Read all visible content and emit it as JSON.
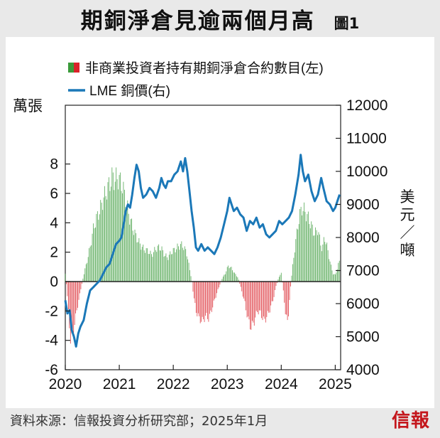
{
  "header": {
    "title": "期銅淨倉見逾兩個月高",
    "figure_label": "圖1"
  },
  "footer": {
    "source": "資料來源：信報投資分析研究部；2025年1月",
    "logo_text": "信報"
  },
  "chart_data": {
    "type": "bar+line",
    "title": "期銅淨倉見逾兩個月高",
    "left_axis": {
      "label": "萬張",
      "ylim": [
        -6,
        12
      ],
      "ticks": [
        -6,
        -4,
        -2,
        0,
        2,
        4,
        6,
        8
      ]
    },
    "right_axis": {
      "label": "美元／噸",
      "ylim": [
        4000,
        12000
      ],
      "ticks": [
        4000,
        5000,
        6000,
        7000,
        8000,
        9000,
        10000,
        11000,
        12000
      ]
    },
    "x_axis": {
      "ticks": [
        "2020",
        "2021",
        "2022",
        "2023",
        "2024",
        "2025"
      ],
      "range": [
        2020.0,
        2025.1
      ]
    },
    "legend": {
      "placement": "top-left",
      "entries": [
        {
          "label": "非商業投資者持有期銅淨倉合約數目(左)",
          "type": "bar"
        },
        {
          "label": "LME 銅價(右)",
          "type": "line"
        }
      ]
    },
    "colors": {
      "positive": "#3a9a3a",
      "negative": "#d9222a",
      "line": "#1b78b8",
      "positive_fill": "#8fcf86",
      "negative_fill": "#ef8a8e"
    },
    "series": [
      {
        "name": "非商業投資者持有期銅淨倉合約數目(左)",
        "axis": "left",
        "unit": "萬張",
        "points": [
          [
            2020.0,
            0.6
          ],
          [
            2020.03,
            -0.6
          ],
          [
            2020.06,
            -2.5
          ],
          [
            2020.1,
            -4.5
          ],
          [
            2020.14,
            -3.8
          ],
          [
            2020.18,
            -3.0
          ],
          [
            2020.22,
            -2.0
          ],
          [
            2020.26,
            -1.2
          ],
          [
            2020.3,
            -0.3
          ],
          [
            2020.34,
            0.5
          ],
          [
            2020.4,
            1.5
          ],
          [
            2020.46,
            2.6
          ],
          [
            2020.52,
            4.0
          ],
          [
            2020.58,
            4.8
          ],
          [
            2020.64,
            5.4
          ],
          [
            2020.7,
            6.2
          ],
          [
            2020.76,
            6.8
          ],
          [
            2020.82,
            7.4
          ],
          [
            2020.88,
            8.0
          ],
          [
            2020.92,
            7.6
          ],
          [
            2020.96,
            7.9
          ],
          [
            2021.0,
            7.7
          ],
          [
            2021.06,
            7.2
          ],
          [
            2021.12,
            6.2
          ],
          [
            2021.18,
            5.0
          ],
          [
            2021.24,
            4.2
          ],
          [
            2021.3,
            3.5
          ],
          [
            2021.36,
            3.0
          ],
          [
            2021.42,
            2.6
          ],
          [
            2021.48,
            2.4
          ],
          [
            2021.54,
            2.3
          ],
          [
            2021.6,
            2.0
          ],
          [
            2021.66,
            2.4
          ],
          [
            2021.72,
            2.6
          ],
          [
            2021.78,
            2.5
          ],
          [
            2021.84,
            2.0
          ],
          [
            2021.9,
            1.8
          ],
          [
            2021.96,
            2.2
          ],
          [
            2022.02,
            2.4
          ],
          [
            2022.08,
            2.6
          ],
          [
            2022.14,
            2.8
          ],
          [
            2022.2,
            2.6
          ],
          [
            2022.26,
            2.0
          ],
          [
            2022.3,
            1.0
          ],
          [
            2022.34,
            0.2
          ],
          [
            2022.38,
            -1.2
          ],
          [
            2022.42,
            -2.2
          ],
          [
            2022.48,
            -2.8
          ],
          [
            2022.54,
            -3.0
          ],
          [
            2022.6,
            -2.6
          ],
          [
            2022.66,
            -2.8
          ],
          [
            2022.72,
            -2.0
          ],
          [
            2022.78,
            -1.2
          ],
          [
            2022.84,
            -0.5
          ],
          [
            2022.9,
            0.2
          ],
          [
            2022.96,
            0.6
          ],
          [
            2023.02,
            1.2
          ],
          [
            2023.08,
            1.0
          ],
          [
            2023.14,
            0.6
          ],
          [
            2023.2,
            0.3
          ],
          [
            2023.26,
            -0.6
          ],
          [
            2023.32,
            -1.5
          ],
          [
            2023.38,
            -2.8
          ],
          [
            2023.44,
            -3.5
          ],
          [
            2023.5,
            -3.0
          ],
          [
            2023.56,
            -2.2
          ],
          [
            2023.62,
            -2.4
          ],
          [
            2023.68,
            -3.0
          ],
          [
            2023.74,
            -2.6
          ],
          [
            2023.8,
            -2.0
          ],
          [
            2023.86,
            -1.2
          ],
          [
            2023.9,
            -0.4
          ],
          [
            2023.96,
            0.4
          ],
          [
            2024.0,
            0.6
          ],
          [
            2024.04,
            -0.8
          ],
          [
            2024.08,
            -2.4
          ],
          [
            2024.12,
            -3.2
          ],
          [
            2024.16,
            -1.0
          ],
          [
            2024.2,
            0.8
          ],
          [
            2024.26,
            2.8
          ],
          [
            2024.32,
            4.6
          ],
          [
            2024.38,
            5.6
          ],
          [
            2024.44,
            5.3
          ],
          [
            2024.5,
            4.8
          ],
          [
            2024.56,
            4.2
          ],
          [
            2024.62,
            3.6
          ],
          [
            2024.68,
            4.0
          ],
          [
            2024.72,
            3.0
          ],
          [
            2024.76,
            2.4
          ],
          [
            2024.8,
            3.4
          ],
          [
            2024.84,
            2.8
          ],
          [
            2024.88,
            2.0
          ],
          [
            2024.92,
            1.2
          ],
          [
            2024.96,
            0.6
          ],
          [
            2025.0,
            0.5
          ],
          [
            2025.04,
            1.0
          ],
          [
            2025.07,
            1.5
          ]
        ]
      },
      {
        "name": "LME 銅價(右)",
        "axis": "right",
        "unit": "美元／噸",
        "points": [
          [
            2020.0,
            6100
          ],
          [
            2020.04,
            5700
          ],
          [
            2020.08,
            5800
          ],
          [
            2020.12,
            5200
          ],
          [
            2020.16,
            5000
          ],
          [
            2020.2,
            4700
          ],
          [
            2020.24,
            5100
          ],
          [
            2020.28,
            5300
          ],
          [
            2020.34,
            5500
          ],
          [
            2020.4,
            6000
          ],
          [
            2020.46,
            6400
          ],
          [
            2020.52,
            6500
          ],
          [
            2020.58,
            6600
          ],
          [
            2020.64,
            6700
          ],
          [
            2020.7,
            6900
          ],
          [
            2020.76,
            7100
          ],
          [
            2020.82,
            7200
          ],
          [
            2020.88,
            7500
          ],
          [
            2020.94,
            7800
          ],
          [
            2021.0,
            7900
          ],
          [
            2021.04,
            8000
          ],
          [
            2021.08,
            8400
          ],
          [
            2021.12,
            8800
          ],
          [
            2021.16,
            9000
          ],
          [
            2021.2,
            8900
          ],
          [
            2021.24,
            9300
          ],
          [
            2021.28,
            9800
          ],
          [
            2021.32,
            10200
          ],
          [
            2021.36,
            10000
          ],
          [
            2021.4,
            9500
          ],
          [
            2021.44,
            9200
          ],
          [
            2021.5,
            9300
          ],
          [
            2021.56,
            9500
          ],
          [
            2021.62,
            9400
          ],
          [
            2021.68,
            9200
          ],
          [
            2021.74,
            9500
          ],
          [
            2021.78,
            9800
          ],
          [
            2021.82,
            9600
          ],
          [
            2021.86,
            9500
          ],
          [
            2021.9,
            9700
          ],
          [
            2021.96,
            9700
          ],
          [
            2022.02,
            9900
          ],
          [
            2022.08,
            10000
          ],
          [
            2022.14,
            10300
          ],
          [
            2022.18,
            10000
          ],
          [
            2022.22,
            10400
          ],
          [
            2022.26,
            10000
          ],
          [
            2022.3,
            9400
          ],
          [
            2022.34,
            8800
          ],
          [
            2022.38,
            8300
          ],
          [
            2022.42,
            7700
          ],
          [
            2022.46,
            7600
          ],
          [
            2022.52,
            7800
          ],
          [
            2022.58,
            7600
          ],
          [
            2022.64,
            7700
          ],
          [
            2022.7,
            7600
          ],
          [
            2022.76,
            7500
          ],
          [
            2022.82,
            7700
          ],
          [
            2022.88,
            8000
          ],
          [
            2022.94,
            8400
          ],
          [
            2023.0,
            8800
          ],
          [
            2023.04,
            9200
          ],
          [
            2023.08,
            9000
          ],
          [
            2023.12,
            8800
          ],
          [
            2023.18,
            8900
          ],
          [
            2023.24,
            8700
          ],
          [
            2023.3,
            8600
          ],
          [
            2023.36,
            8200
          ],
          [
            2023.42,
            8500
          ],
          [
            2023.48,
            8400
          ],
          [
            2023.54,
            8600
          ],
          [
            2023.6,
            8300
          ],
          [
            2023.66,
            8400
          ],
          [
            2023.72,
            8100
          ],
          [
            2023.78,
            8000
          ],
          [
            2023.84,
            8100
          ],
          [
            2023.9,
            8200
          ],
          [
            2023.96,
            8500
          ],
          [
            2024.02,
            8400
          ],
          [
            2024.08,
            8500
          ],
          [
            2024.14,
            8600
          ],
          [
            2024.2,
            8800
          ],
          [
            2024.26,
            9300
          ],
          [
            2024.32,
            9900
          ],
          [
            2024.36,
            10500
          ],
          [
            2024.4,
            10000
          ],
          [
            2024.44,
            9700
          ],
          [
            2024.5,
            9900
          ],
          [
            2024.56,
            9400
          ],
          [
            2024.62,
            9100
          ],
          [
            2024.68,
            9300
          ],
          [
            2024.74,
            9800
          ],
          [
            2024.78,
            9500
          ],
          [
            2024.84,
            9100
          ],
          [
            2024.9,
            9000
          ],
          [
            2024.96,
            8800
          ],
          [
            2025.0,
            8900
          ],
          [
            2025.04,
            9100
          ],
          [
            2025.08,
            9300
          ]
        ]
      }
    ]
  }
}
